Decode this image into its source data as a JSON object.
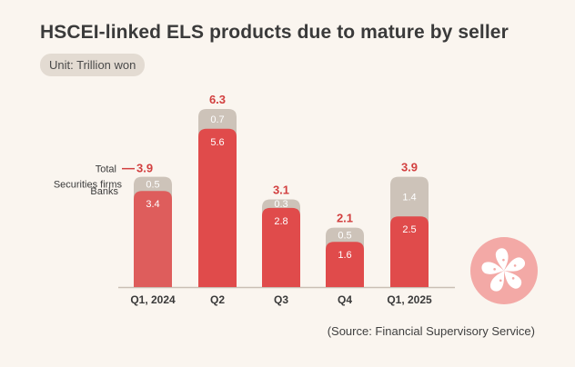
{
  "header": {
    "title": "HSCEI-linked ELS products due to mature by seller",
    "unit": "Unit: Trillion won"
  },
  "footer": {
    "source": "(Source: Financial Supervisory Service)"
  },
  "legend": {
    "total_label": "Total",
    "securities_label": "Securities firms",
    "banks_label": "Banks"
  },
  "colors": {
    "banks": "#e04b4b",
    "banks_light": "#ee8f8a",
    "securities": "#cdc3b9",
    "total": "#d23f3f",
    "axis": "#c9bfb5",
    "icon_circle": "#f3a9a6"
  },
  "icon": "hong-kong-bauhinia-flower-icon",
  "chart_data": {
    "type": "bar",
    "stacked": true,
    "categories": [
      "Q1, 2024",
      "Q2",
      "Q3",
      "Q4",
      "Q1, 2025"
    ],
    "series": [
      {
        "name": "Banks",
        "values": [
          3.4,
          5.6,
          2.8,
          1.6,
          2.5
        ]
      },
      {
        "name": "Securities firms",
        "values": [
          0.5,
          0.7,
          0.3,
          0.5,
          1.4
        ]
      }
    ],
    "totals": [
      3.9,
      6.3,
      3.1,
      2.1,
      3.9
    ],
    "total_labels": [
      "3.9",
      "6.3",
      "3.1",
      "2.1",
      "3.9"
    ],
    "banks_labels": [
      "3.4",
      "5.6",
      "2.8",
      "1.6",
      "2.5"
    ],
    "securities_labels": [
      "0.5",
      "0.7",
      "0.3",
      "0.5",
      "1.4"
    ],
    "ylim": [
      0,
      6.3
    ],
    "title": "HSCEI-linked ELS products due to mature by seller",
    "ylabel": "Trillion won"
  }
}
